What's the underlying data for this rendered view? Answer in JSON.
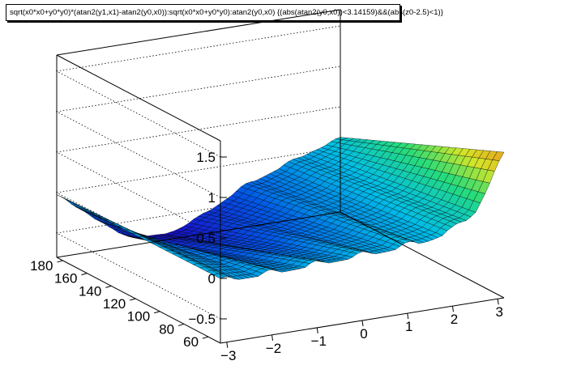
{
  "title": "sqrt(x0*x0+y0*y0)*(atan2(y1,x1)-atan2(y0,x0)):sqrt(x0*x0+y0*y0):atan2(y0,x0) {(abs(atan2(y0,x0))<3.14159)&&(abs(z0-2.5)<1)}",
  "chart_data": {
    "type": "surface",
    "xlabel": "",
    "ylabel": "",
    "zlabel": "",
    "x_ticks": [
      -3,
      -2,
      -1,
      0,
      1,
      2,
      3
    ],
    "y_ticks": [
      60,
      80,
      100,
      120,
      140,
      160,
      180
    ],
    "z_ticks": [
      -0.5,
      0,
      0.5,
      1,
      1.5
    ],
    "xlim": [
      -3.14,
      3.14
    ],
    "ylim": [
      50,
      185
    ],
    "zlim": [
      -0.8,
      1.7
    ],
    "grid": true,
    "surface_profile": {
      "x": [
        -3.14,
        -2.5,
        -2.0,
        -1.5,
        -1.0,
        -0.5,
        0.0,
        0.5,
        1.0,
        1.5,
        2.0,
        2.5,
        3.14
      ],
      "z_at_ymin": [
        -0.05,
        -0.05,
        -0.05,
        -0.04,
        -0.03,
        -0.02,
        -0.01,
        0.0,
        0.02,
        0.05,
        0.12,
        0.3,
        0.95
      ],
      "z_at_ymax": [
        -0.05,
        -0.3,
        -0.55,
        -0.7,
        -0.75,
        -0.7,
        -0.6,
        -0.45,
        -0.3,
        -0.2,
        -0.1,
        0.0,
        0.1
      ]
    }
  }
}
